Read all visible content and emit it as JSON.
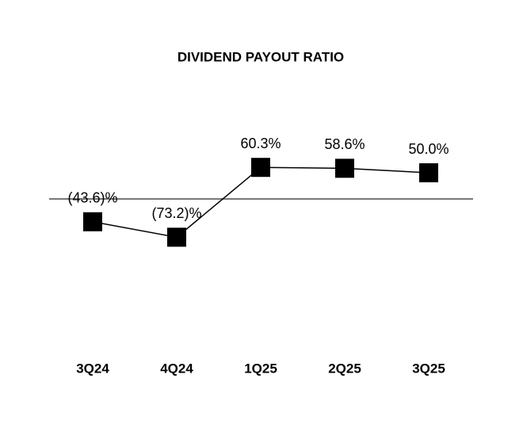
{
  "chart_data": {
    "type": "line",
    "title": "DIVIDEND PAYOUT RATIO",
    "categories": [
      "3Q24",
      "4Q24",
      "1Q25",
      "2Q25",
      "3Q25"
    ],
    "values": [
      -43.6,
      -73.2,
      60.3,
      58.6,
      50.0
    ],
    "value_labels": [
      "(43.6)%",
      "(73.2)%",
      "60.3%",
      "58.6%",
      "50.0%"
    ],
    "color": "#000000",
    "ylim": [
      -150,
      150
    ]
  }
}
